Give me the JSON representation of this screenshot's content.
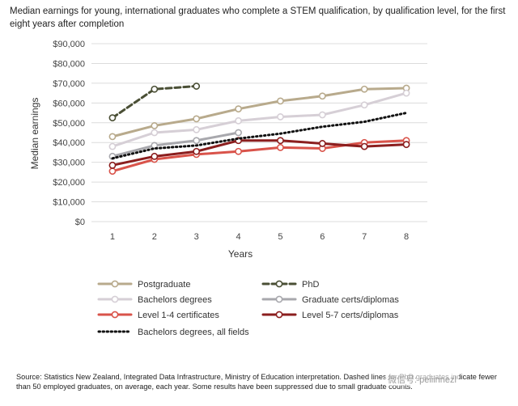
{
  "title": "Median earnings for young, international graduates who complete a STEM qualification, by qualification level, for the first eight years after completion",
  "source_note": "Source: Statistics New Zealand, Integrated Data Infrastructure, Ministry of Education interpretation. Dashed lines for PhD graduates indicate fewer than 50 employed graduates, on average, each year.  Some results have been suppressed due to small graduate counts.",
  "watermark": "微信号: peiiinnezl",
  "chart_data": {
    "type": "line",
    "xlabel": "Years",
    "ylabel": "Median earnings",
    "categories": [
      "1",
      "2",
      "3",
      "4",
      "5",
      "6",
      "7",
      "8"
    ],
    "x": [
      1,
      2,
      3,
      4,
      5,
      6,
      7,
      8
    ],
    "ylim": [
      0,
      90000
    ],
    "y_ticks": [
      0,
      10000,
      20000,
      30000,
      40000,
      50000,
      60000,
      70000,
      80000,
      90000
    ],
    "y_tick_labels": [
      "$0",
      "$10,000",
      "$20,000",
      "$30,000",
      "$40,000",
      "$50,000",
      "$60,000",
      "$70,000",
      "$80,000",
      "$90,000"
    ],
    "grid": true,
    "legend_position": "bottom",
    "series": [
      {
        "name": "Postgraduate",
        "color": "#b8aa8c",
        "style": "solid",
        "marker": true,
        "values": [
          43000,
          48500,
          52000,
          57000,
          61000,
          63500,
          67000,
          67500
        ]
      },
      {
        "name": "PhD",
        "color": "#4a4f35",
        "style": "dashed",
        "marker": true,
        "values": [
          52500,
          67000,
          68500,
          null,
          null,
          null,
          null,
          null
        ]
      },
      {
        "name": "Bachelors degrees",
        "color": "#d6cfd6",
        "style": "solid",
        "marker": true,
        "values": [
          38000,
          45000,
          46500,
          51000,
          53000,
          54000,
          59000,
          65000
        ]
      },
      {
        "name": "Graduate certs/diplomas",
        "color": "#a8a8ad",
        "style": "solid",
        "marker": true,
        "values": [
          33000,
          38500,
          41000,
          45000,
          null,
          null,
          null,
          null
        ]
      },
      {
        "name": "Level 1-4 certificates",
        "color": "#d9534a",
        "style": "solid",
        "marker": true,
        "values": [
          25500,
          31500,
          34000,
          35500,
          37500,
          37000,
          40000,
          41000
        ]
      },
      {
        "name": "Level 5-7 certs/diplomas",
        "color": "#8b1e1e",
        "style": "solid",
        "marker": true,
        "values": [
          28500,
          33000,
          35500,
          41000,
          41000,
          39500,
          38000,
          39000
        ]
      },
      {
        "name": "Bachelors degrees, all fields",
        "color": "#111111",
        "style": "dotted",
        "marker": false,
        "values": [
          32000,
          37000,
          38500,
          42000,
          44500,
          48000,
          50500,
          55000
        ]
      }
    ]
  }
}
